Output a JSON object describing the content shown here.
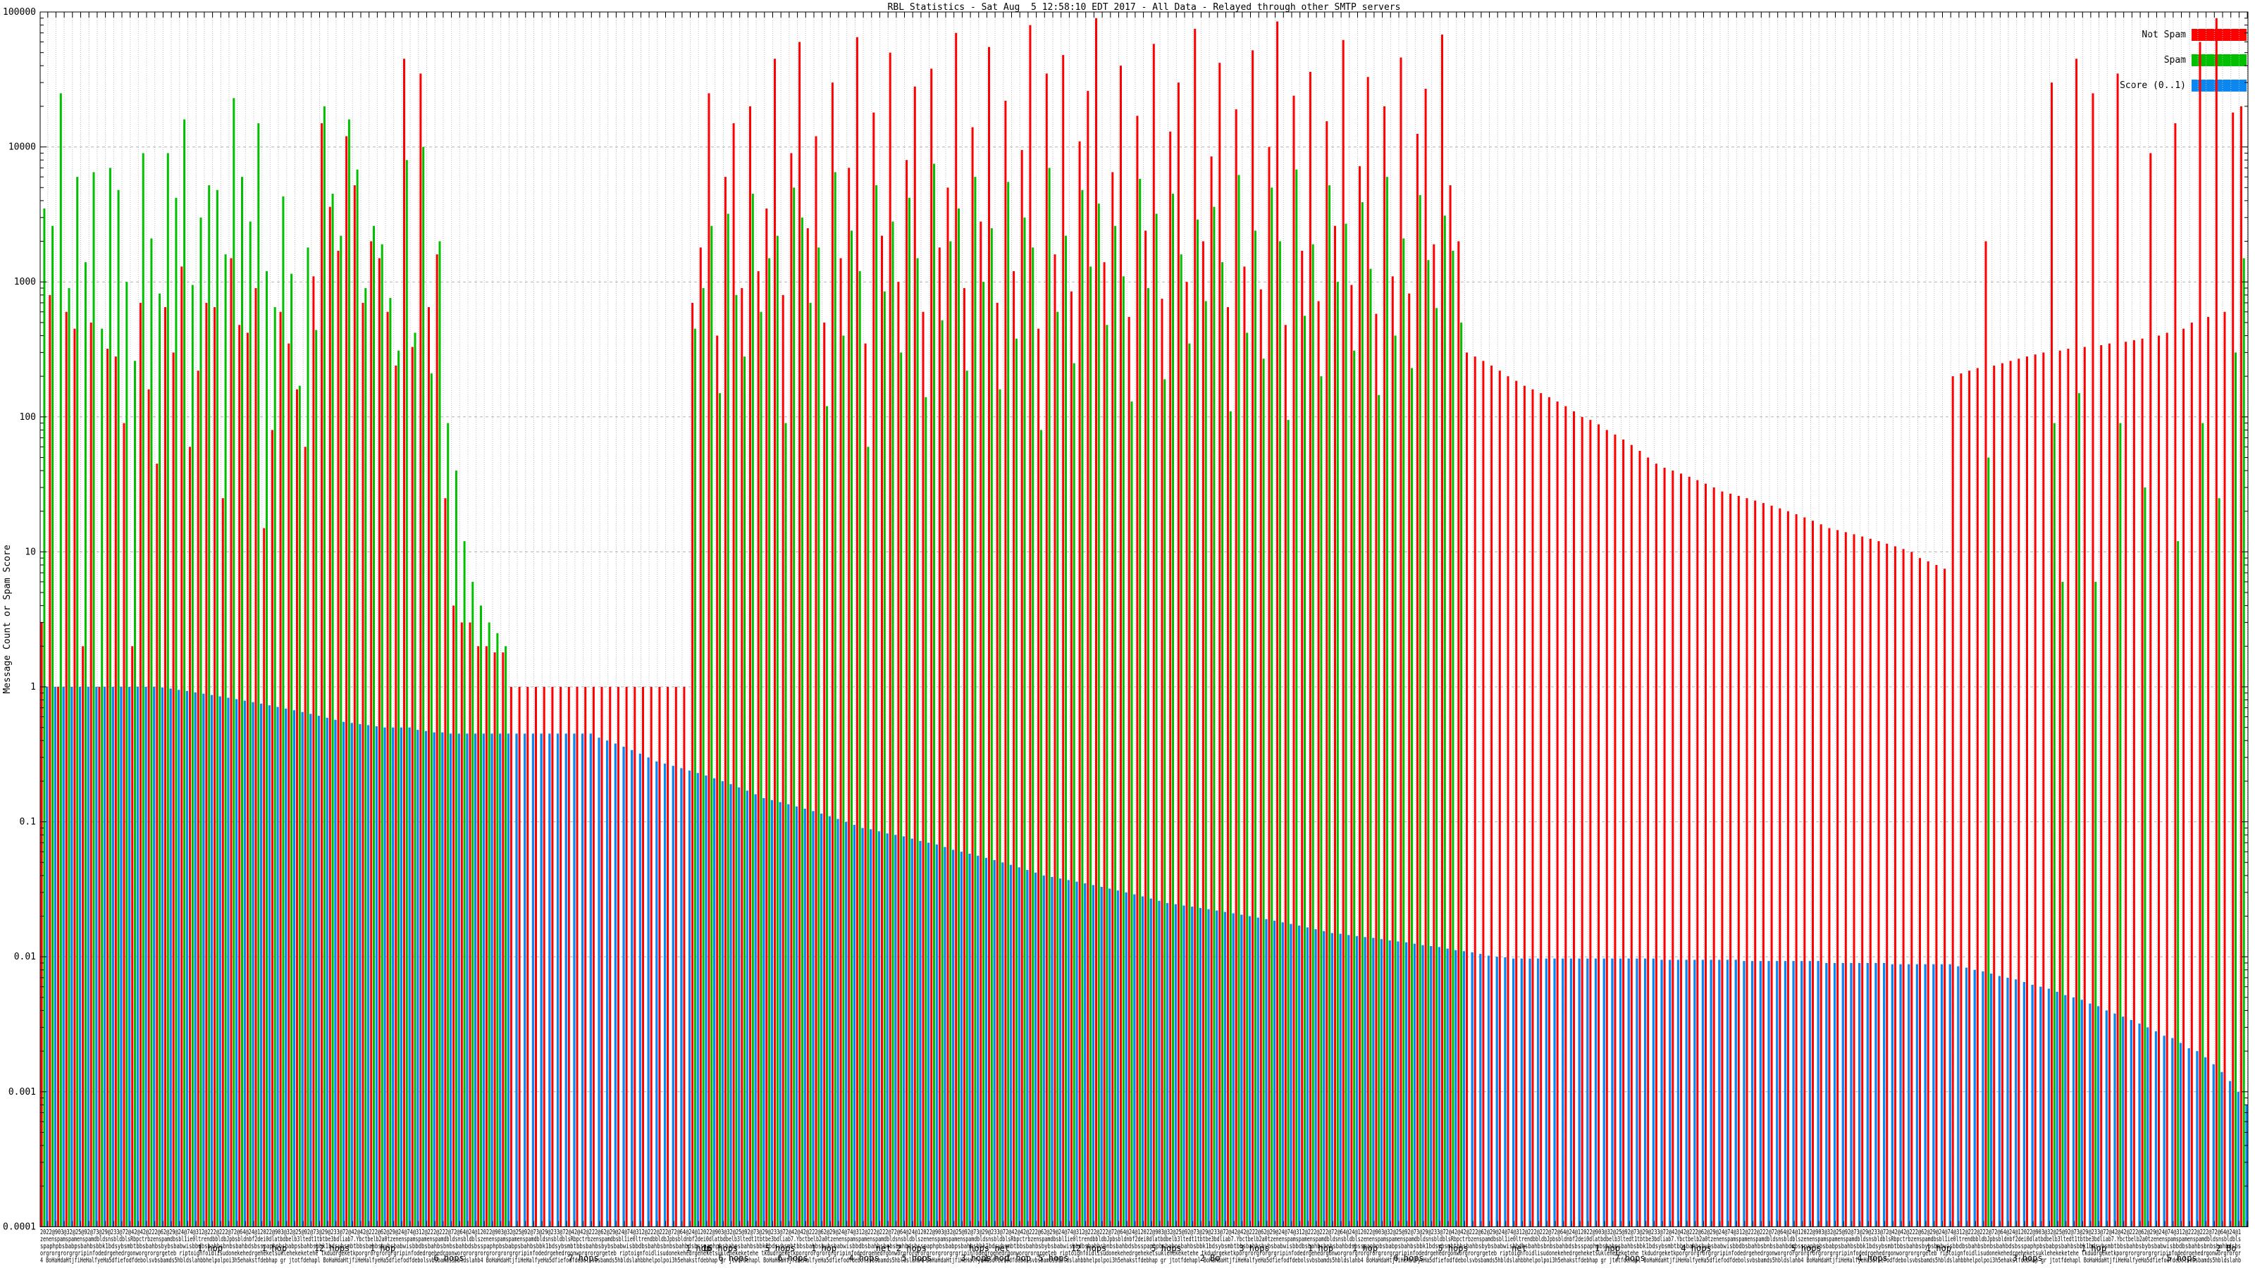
{
  "title": "RBL Statistics - Sat Aug  5 12:58:10 EDT 2017 - All Data - Relayed through other SMTP servers",
  "ylabel": "Message Count or Spam Score",
  "legend": [
    {
      "label": "Not Spam",
      "color": "#ff0000"
    },
    {
      "label": "Spam",
      "color": "#00c000"
    },
    {
      "label": "Score (0..1)",
      "color": "#0a87f0"
    }
  ],
  "yaxis": {
    "ticks": [
      {
        "v": 100000,
        "t": "100000"
      },
      {
        "v": 10000,
        "t": "10000"
      },
      {
        "v": 1000,
        "t": "1000"
      },
      {
        "v": 100,
        "t": "100"
      },
      {
        "v": 10,
        "t": "10"
      },
      {
        "v": 1,
        "t": "1"
      },
      {
        "v": 0.1,
        "t": "0.1"
      },
      {
        "v": 0.01,
        "t": "0.01"
      },
      {
        "v": 0.001,
        "t": "0.001"
      },
      {
        "v": 0.0001,
        "t": "0.0001"
      }
    ]
  },
  "xaxis": {
    "garble_rows": [
      "2022@903@32@25@92@73@29@233@72@42@42@222@62@29@24@74@312@222@222@72@64@24@12022@903@32@25@92@73@29@233@72@42@42@222@62@29@24@74@312@222@222@72@64@24@1",
      "zenenspamspamenspamdbldsnsbldblsRbpctrbzenspamdbsbl1ie0ltrendbbldbJpbsbldnbf2dei0dlatbdbelb3ltedt1tbtbe3bdliab7.Ybctbelb2a0tzenenspamspamenspamdbldsnsbldbls",
      "spaphpbsbabpsbahbsbbk1bdsybsmbtbbsbahbsbybsbabwisbbdbsbahbsbnbsbahbdsbsspaphpbsbabpsbahbsbbk1bdsybsmbtbbsbahbsbybsbabwisbbdbsbahbsbnbsbahbdsbs",
      "orgrorgrorgrgripinfodedrgehedrgonworgrorgrgeteb riptoignfoidlisudonekehedrgeheketsuklehekeketehe tkdudrgeketkporgrorgrorgrgripinfodedrgehedrgonworgrorgr",
      "4 BoHaHdaHtjfiHeHalfyeHa5dfiefodfdebolsvbsbamds5hbldslahbbhelpolpoi3h5ehakstfdebhap gr jtotfdehapl BoHaHdaHtjfiHeHalfyeHa5dfiefodfdebolsvbsbamds5hbldslahb"
    ],
    "hops_labels_row1": [
      {
        "f": 0.077,
        "t": "1 hop"
      },
      {
        "f": 0.106,
        "t": "1 hop"
      },
      {
        "f": 0.132,
        "t": "12 hops"
      },
      {
        "f": 0.155,
        "t": "1 hop"
      },
      {
        "f": 0.298,
        "t": "1 hop"
      },
      {
        "f": 0.308,
        "t": "16 hops"
      },
      {
        "f": 0.335,
        "t": "5 hops"
      },
      {
        "f": 0.355,
        "t": "1 hop"
      },
      {
        "f": 0.39,
        "t": "net 2 hops"
      },
      {
        "f": 0.43,
        "t": "hops net"
      },
      {
        "f": 0.475,
        "t": "12 hops"
      },
      {
        "f": 0.51,
        "t": "5 hops"
      },
      {
        "f": 0.55,
        "t": "3 hops"
      },
      {
        "f": 0.58,
        "t": "1 hop"
      },
      {
        "f": 0.6,
        "t": "1 hop"
      },
      {
        "f": 0.64,
        "t": "5 hops"
      },
      {
        "f": 0.67,
        "t": "net"
      },
      {
        "f": 0.71,
        "t": "1 hop"
      },
      {
        "f": 0.75,
        "t": "4 hops"
      },
      {
        "f": 0.8,
        "t": "5 hops"
      },
      {
        "f": 0.86,
        "t": "1 hop"
      },
      {
        "f": 0.93,
        "t": "1 hop"
      },
      {
        "f": 0.99,
        "t": "2 Bo"
      }
    ],
    "hops_labels_row2": [
      {
        "f": 0.185,
        "t": "6 hops"
      },
      {
        "f": 0.246,
        "t": "7 hops"
      },
      {
        "f": 0.314,
        "t": "6 hops"
      },
      {
        "f": 0.341,
        "t": "6 hops"
      },
      {
        "f": 0.373,
        "t": "4 hops"
      },
      {
        "f": 0.397,
        "t": "5 hops"
      },
      {
        "f": 0.424,
        "t": "3 hops"
      },
      {
        "f": 0.433,
        "t": "1 hop"
      },
      {
        "f": 0.443,
        "t": "1 hop"
      },
      {
        "f": 0.459,
        "t": "5 hops"
      },
      {
        "f": 0.53,
        "t": "2 Bo"
      },
      {
        "f": 0.62,
        "t": "6 hops"
      },
      {
        "f": 0.72,
        "t": "7 hops"
      },
      {
        "f": 0.83,
        "t": "4 hops"
      },
      {
        "f": 0.9,
        "t": "3 hops"
      },
      {
        "f": 0.97,
        "t": "5 hops"
      }
    ]
  },
  "chart_data": {
    "type": "bar",
    "title": "RBL Statistics - Sat Aug  5 12:58:10 EDT 2017 - All Data - Relayed through other SMTP servers",
    "ylabel": "Message Count or Spam Score",
    "log_scale_y": true,
    "ylim": [
      0.0001,
      100000
    ],
    "grid": true,
    "legend_position": "top-right",
    "series": [
      {
        "name": "Not Spam",
        "color": "#ff0000",
        "values": [
          3,
          800,
          1,
          600,
          450,
          2,
          500,
          1,
          320,
          280,
          90,
          2,
          700,
          160,
          45,
          650,
          300,
          1300,
          60,
          220,
          700,
          650,
          25,
          1500,
          480,
          420,
          900,
          15,
          80,
          600,
          350,
          160,
          60,
          1100,
          15000,
          3600,
          1700,
          12000,
          5200,
          700,
          2000,
          1500,
          600,
          240,
          45000,
          330,
          35000,
          650,
          1600,
          25,
          4,
          3,
          3,
          2,
          2,
          1.8,
          1.8,
          1,
          1,
          1,
          1,
          1,
          1,
          1,
          1,
          1,
          1,
          1,
          1,
          1,
          1,
          1,
          1,
          1,
          1,
          1,
          1,
          1,
          1,
          700,
          1800,
          25000,
          400,
          6000,
          15000,
          900,
          20000,
          1200,
          3500,
          45000,
          800,
          9000,
          60000,
          2500,
          12000,
          500,
          30000,
          1500,
          7000,
          65000,
          350,
          18000,
          2200,
          50000,
          1000,
          8000,
          28000,
          600,
          38000,
          1800,
          5000,
          70000,
          900,
          14000,
          2800,
          55000,
          700,
          22000,
          1200,
          9500,
          80000,
          450,
          35000,
          1600,
          48000,
          850,
          11000,
          26000,
          90000,
          1400,
          6500,
          40000,
          550,
          17000,
          2400,
          58000,
          750,
          13000,
          30000,
          1000,
          75000,
          2000,
          8500,
          42000,
          650,
          19000,
          1300,
          52000,
          880,
          10000,
          85000,
          480,
          24000,
          1700,
          36000,
          720,
          15500,
          2600,
          62000,
          950,
          7200,
          33000,
          580,
          20000,
          1100,
          46000,
          820,
          12500,
          27000,
          1900,
          68000,
          5200,
          2000,
          300,
          280,
          260,
          240,
          220,
          200,
          185,
          170,
          160,
          150,
          140,
          130,
          120,
          110,
          100,
          95,
          88,
          80,
          74,
          68,
          62,
          56,
          50,
          45,
          42,
          40,
          38,
          36,
          34,
          32,
          30,
          28,
          27,
          26,
          25,
          24,
          23,
          22,
          21,
          20,
          19,
          18,
          17,
          16,
          15,
          14.5,
          14,
          13.5,
          13,
          12.5,
          12,
          11.5,
          11,
          10.5,
          10,
          9,
          8.5,
          8,
          7.5,
          200,
          210,
          220,
          230,
          2000,
          240,
          250,
          260,
          270,
          280,
          290,
          300,
          30000,
          310,
          320,
          45000,
          330,
          25000,
          340,
          350,
          35000,
          360,
          370,
          380,
          9000,
          400,
          420,
          15000,
          450,
          500,
          60000,
          550,
          90000,
          600,
          18000,
          20000
        ]
      },
      {
        "name": "Spam",
        "color": "#00c000",
        "values": [
          3500,
          2600,
          25000,
          900,
          6000,
          1400,
          6500,
          450,
          7000,
          4800,
          1000,
          260,
          9000,
          2100,
          820,
          9000,
          4200,
          16000,
          950,
          3000,
          5200,
          4800,
          1600,
          23000,
          6000,
          2800,
          15000,
          1200,
          650,
          4300,
          1150,
          170,
          1800,
          440,
          20000,
          4500,
          2200,
          16000,
          6800,
          900,
          2600,
          1900,
          760,
          310,
          8000,
          420,
          10000,
          210,
          2000,
          90,
          40,
          12,
          6,
          4,
          3,
          2.5,
          2,
          0,
          0,
          0,
          0,
          0,
          0,
          0,
          0,
          0,
          0,
          0,
          0,
          0,
          0,
          0,
          0,
          0,
          0,
          0,
          0,
          0,
          0,
          450,
          900,
          2600,
          150,
          3200,
          800,
          280,
          4500,
          600,
          1500,
          2200,
          90,
          5000,
          3000,
          700,
          1800,
          120,
          6500,
          400,
          2400,
          1200,
          60,
          5200,
          850,
          2800,
          300,
          4200,
          1500,
          140,
          7500,
          520,
          2000,
          3500,
          220,
          6000,
          1000,
          2500,
          160,
          5500,
          380,
          3000,
          1800,
          80,
          7000,
          600,
          2200,
          250,
          4800,
          1300,
          3800,
          480,
          2600,
          1100,
          130,
          5800,
          900,
          3200,
          190,
          4500,
          1600,
          350,
          2900,
          720,
          3600,
          1400,
          110,
          6200,
          420,
          2400,
          270,
          5000,
          2000,
          95,
          6800,
          560,
          1900,
          200,
          5200,
          1000,
          2700,
          310,
          3900,
          1250,
          145,
          6000,
          400,
          2100,
          230,
          4400,
          1450,
          640,
          3100,
          1700,
          500,
          0,
          0,
          0,
          0,
          0,
          0,
          0,
          0,
          0,
          0,
          0,
          0,
          0,
          0,
          0,
          0,
          0,
          0,
          0,
          0,
          0,
          0,
          0,
          0,
          0,
          0,
          0,
          0,
          0,
          0,
          0,
          0,
          0,
          0,
          0,
          0,
          0,
          0,
          0,
          0,
          0,
          0,
          0,
          0,
          0,
          0,
          0,
          0,
          0,
          0,
          0,
          0,
          0,
          0,
          0,
          0,
          0,
          0,
          0,
          0,
          0,
          0,
          0,
          50,
          0,
          0,
          0,
          0,
          0,
          0,
          0,
          90,
          6,
          0,
          150,
          0,
          6,
          0,
          0,
          90,
          0,
          0,
          30,
          0,
          0,
          0,
          12,
          0,
          0,
          90,
          0,
          25,
          0,
          300,
          1500
        ]
      },
      {
        "name": "Score (0..1)",
        "color": "#0a87f0",
        "values": [
          1,
          1,
          1,
          1,
          1,
          1,
          1,
          1,
          1,
          1,
          1,
          1,
          1,
          1,
          0.99,
          0.97,
          0.95,
          0.93,
          0.91,
          0.89,
          0.87,
          0.85,
          0.83,
          0.81,
          0.79,
          0.77,
          0.75,
          0.73,
          0.71,
          0.69,
          0.67,
          0.65,
          0.63,
          0.61,
          0.59,
          0.57,
          0.55,
          0.54,
          0.53,
          0.52,
          0.51,
          0.5,
          0.5,
          0.5,
          0.5,
          0.48,
          0.47,
          0.46,
          0.46,
          0.45,
          0.45,
          0.45,
          0.45,
          0.45,
          0.45,
          0.45,
          0.45,
          0.45,
          0.45,
          0.45,
          0.45,
          0.45,
          0.45,
          0.45,
          0.45,
          0.45,
          0.45,
          0.42,
          0.4,
          0.38,
          0.36,
          0.34,
          0.32,
          0.3,
          0.28,
          0.27,
          0.26,
          0.25,
          0.24,
          0.23,
          0.22,
          0.21,
          0.2,
          0.19,
          0.18,
          0.17,
          0.16,
          0.15,
          0.145,
          0.14,
          0.135,
          0.13,
          0.125,
          0.12,
          0.115,
          0.11,
          0.105,
          0.1,
          0.095,
          0.09,
          0.088,
          0.085,
          0.082,
          0.08,
          0.078,
          0.075,
          0.072,
          0.07,
          0.068,
          0.065,
          0.062,
          0.06,
          0.058,
          0.056,
          0.054,
          0.052,
          0.05,
          0.048,
          0.046,
          0.044,
          0.042,
          0.04,
          0.039,
          0.038,
          0.037,
          0.036,
          0.035,
          0.034,
          0.033,
          0.032,
          0.031,
          0.03,
          0.029,
          0.028,
          0.027,
          0.026,
          0.025,
          0.0245,
          0.024,
          0.0235,
          0.023,
          0.0225,
          0.022,
          0.0215,
          0.021,
          0.0205,
          0.02,
          0.0195,
          0.019,
          0.0185,
          0.018,
          0.0175,
          0.017,
          0.0165,
          0.016,
          0.0155,
          0.015,
          0.0148,
          0.0145,
          0.0142,
          0.014,
          0.0138,
          0.0135,
          0.0132,
          0.013,
          0.0128,
          0.0125,
          0.0122,
          0.012,
          0.0118,
          0.0115,
          0.0112,
          0.011,
          0.0108,
          0.0105,
          0.0102,
          0.01,
          0.0099,
          0.0097,
          0.0097,
          0.0097,
          0.0097,
          0.0097,
          0.0097,
          0.0097,
          0.0097,
          0.0097,
          0.0097,
          0.0097,
          0.0097,
          0.0097,
          0.0097,
          0.0097,
          0.0097,
          0.0097,
          0.0097,
          0.0095,
          0.0095,
          0.0095,
          0.0095,
          0.0095,
          0.0095,
          0.0095,
          0.0095,
          0.0095,
          0.0095,
          0.0093,
          0.0093,
          0.0093,
          0.0093,
          0.0093,
          0.0093,
          0.0093,
          0.0093,
          0.0093,
          0.0093,
          0.009,
          0.009,
          0.009,
          0.009,
          0.009,
          0.009,
          0.009,
          0.009,
          0.0088,
          0.0088,
          0.0088,
          0.0088,
          0.0088,
          0.0088,
          0.0088,
          0.0088,
          0.0085,
          0.0083,
          0.008,
          0.0078,
          0.0075,
          0.0072,
          0.007,
          0.0068,
          0.0065,
          0.0062,
          0.006,
          0.0058,
          0.0055,
          0.0052,
          0.005,
          0.0048,
          0.0045,
          0.0043,
          0.004,
          0.0038,
          0.0036,
          0.0034,
          0.0032,
          0.003,
          0.0028,
          0.0026,
          0.0025,
          0.0023,
          0.0021,
          0.002,
          0.0018,
          0.0016,
          0.0014,
          0.0012,
          0.001,
          0.0008
        ]
      }
    ]
  }
}
